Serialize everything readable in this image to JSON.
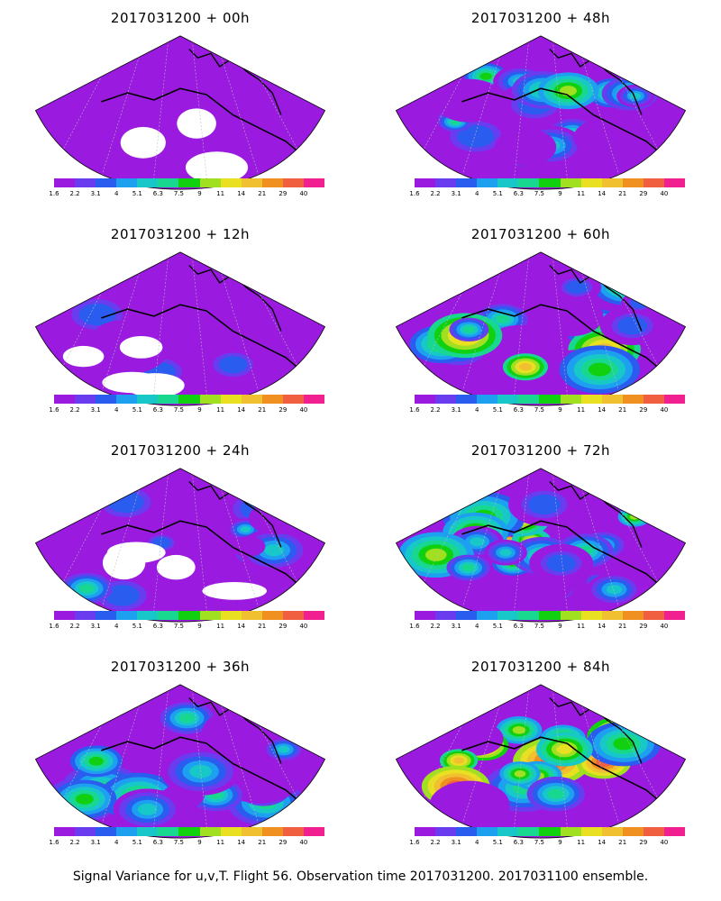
{
  "panels": [
    {
      "title": "2017031200 + 00h",
      "level": 0
    },
    {
      "title": "2017031200 + 48h",
      "level": 4
    },
    {
      "title": "2017031200 + 12h",
      "level": 1
    },
    {
      "title": "2017031200 + 60h",
      "level": 5
    },
    {
      "title": "2017031200 + 24h",
      "level": 2
    },
    {
      "title": "2017031200 + 72h",
      "level": 6
    },
    {
      "title": "2017031200 + 36h",
      "level": 3
    },
    {
      "title": "2017031200 + 84h",
      "level": 7
    }
  ],
  "colorbar": {
    "colors": [
      "#9a1ae0",
      "#6a3cf0",
      "#2a5cf0",
      "#1ea0f0",
      "#18c8c8",
      "#18d890",
      "#10d010",
      "#a0e020",
      "#e8e020",
      "#f0c030",
      "#f09020",
      "#f06040",
      "#f02090"
    ],
    "labels": [
      "1.6",
      "2.2",
      "3.1",
      "4",
      "5.1",
      "6.3",
      "7.5",
      "9",
      "11",
      "14",
      "21",
      "29",
      "40"
    ]
  },
  "caption": "Signal Variance for u,v,T. Flight 56. Observation time 2017031200. 2017031100 ensemble."
}
